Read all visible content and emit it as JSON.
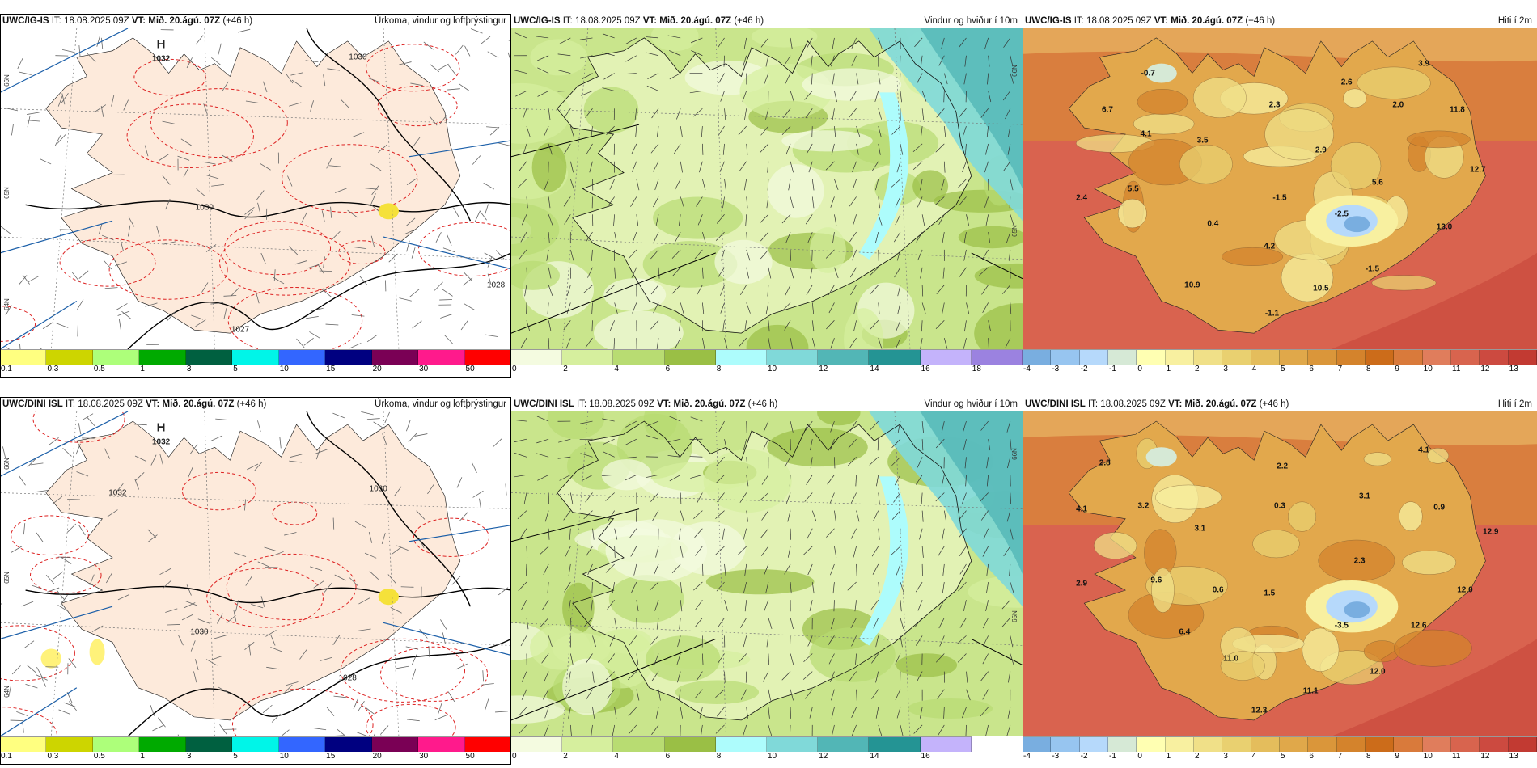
{
  "rows": [
    {
      "model": "UWC/IG-IS",
      "it_label": "IT:",
      "it": "18.08.2025 09Z",
      "vt_label": "VT:",
      "vt": "Mið. 20.ágú. 07Z",
      "lead": "(+46 h)",
      "titles": [
        "Úrkoma, vindur og loftþrýstingur",
        "Vindur og hviður í 10m",
        "Hiti í 2m"
      ],
      "pressure_labels": [
        "H",
        "1032",
        "1030",
        "1030",
        "1027",
        "1028"
      ],
      "temp_labels": [
        "-0.7",
        "3.9",
        "2.6",
        "2.3",
        "2.0",
        "11.8",
        "6.7",
        "4.1",
        "3.5",
        "2.9",
        "12.7",
        "5.5",
        "5.6",
        "2.4",
        "-1.5",
        "-2.5",
        "0.4",
        "13.0",
        "4.2",
        "-1.5",
        "10.9",
        "10.5",
        "-1.1"
      ]
    },
    {
      "model": "UWC/DINI ISL",
      "it_label": "IT:",
      "it": "18.08.2025 09Z",
      "vt_label": "VT:",
      "vt": "Mið. 20.ágú. 07Z",
      "lead": "(+46 h)",
      "titles": [
        "Úrkoma, vindur og loftþrýstingur",
        "Vindur og hviður í 10m",
        "Hiti í 2m"
      ],
      "pressure_labels": [
        "H",
        "1032",
        "1032",
        "1030",
        "1030",
        "1028"
      ],
      "temp_labels": [
        "2.8",
        "2.2",
        "4.1",
        "3.2",
        "0.3",
        "3.1",
        "4.1",
        "0.9",
        "3.1",
        "12.9",
        "2.3",
        "2.9",
        "9.6",
        "0.6",
        "1.5",
        "12.0",
        "-3.5",
        "12.6",
        "6.4",
        "11.0",
        "12.0",
        "11.1",
        "12.3"
      ]
    }
  ],
  "grid_labels": [
    "66N",
    "65N",
    "64N"
  ],
  "colorbars": {
    "precip": {
      "colors": [
        "#ffff80",
        "#cdd500",
        "#adff7a",
        "#00aa00",
        "#006040",
        "#00f5e8",
        "#3366ff",
        "#000080",
        "#7a0055",
        "#ff1a8c",
        "#ff0000"
      ],
      "labels": [
        "0.1",
        "0.3",
        "0.5",
        "1",
        "3",
        "5",
        "10",
        "15",
        "20",
        "30",
        "50"
      ]
    },
    "wind_top": {
      "colors": [
        "#f4fbe0",
        "#d6ef9e",
        "#b8dc72",
        "#9abf45",
        "#adfcfc",
        "#80d9d9",
        "#52b6b6",
        "#249494",
        "#c4b3fb",
        "#9b82e0"
      ],
      "labels": [
        "0",
        "2",
        "4",
        "6",
        "8",
        "10",
        "12",
        "14",
        "16",
        "18"
      ]
    },
    "wind_bottom": {
      "colors": [
        "#f4fbe0",
        "#d6ef9e",
        "#b8dc72",
        "#9abf45",
        "#adfcfc",
        "#80d9d9",
        "#52b6b6",
        "#249494",
        "#c4b3fb"
      ],
      "labels": [
        "0",
        "2",
        "4",
        "6",
        "8",
        "10",
        "12",
        "14",
        "16"
      ]
    },
    "temp": {
      "colors": [
        "#79aee0",
        "#97c5f0",
        "#b6d9fb",
        "#d6e9d6",
        "#ffffb2",
        "#f8f0a0",
        "#f0e088",
        "#e9d070",
        "#e4bd5c",
        "#e0a84a",
        "#da963a",
        "#d4832c",
        "#cc6c1a",
        "#d97a3b",
        "#e07d5c",
        "#d8644e",
        "#cc4a40",
        "#c23a32"
      ],
      "labels": [
        "-4",
        "-3",
        "-2",
        "-1",
        "0",
        "1",
        "2",
        "3",
        "4",
        "5",
        "6",
        "7",
        "8",
        "9",
        "10",
        "11",
        "12",
        "13"
      ]
    }
  }
}
